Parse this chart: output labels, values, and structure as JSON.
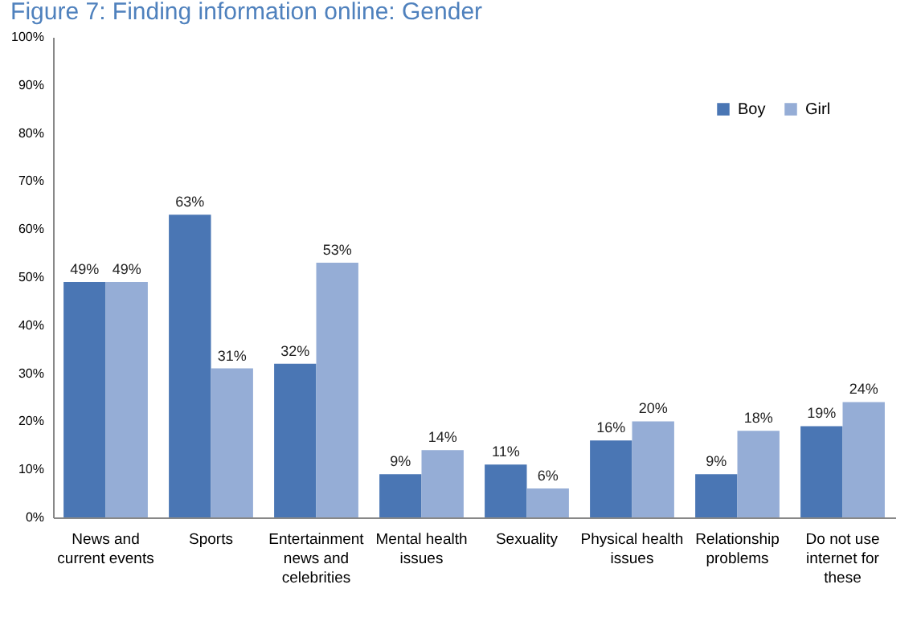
{
  "chart_data": {
    "type": "bar",
    "title": "Figure 7: Finding information online: Gender",
    "categories": [
      "News and current events",
      "Sports",
      "Entertainment news and celebrities",
      "Mental health issues",
      "Sexuality",
      "Physical health issues",
      "Relationship problems",
      "Do not use internet for these"
    ],
    "series": [
      {
        "name": "Boy",
        "color": "#4a76b4",
        "values": [
          49,
          63,
          32,
          9,
          11,
          16,
          9,
          19
        ],
        "value_labels": [
          "49%",
          "63%",
          "32%",
          "9%",
          "11%",
          "16%",
          "9%",
          "19%"
        ]
      },
      {
        "name": "Girl",
        "color": "#95add6",
        "values": [
          49,
          31,
          53,
          14,
          6,
          20,
          18,
          24
        ],
        "value_labels": [
          "49%",
          "31%",
          "53%",
          "14%",
          "6%",
          "20%",
          "18%",
          "24%"
        ]
      }
    ],
    "ylim": [
      0,
      100
    ],
    "yticks": [
      {
        "value": 0,
        "label": "0%"
      },
      {
        "value": 10,
        "label": "10%"
      },
      {
        "value": 20,
        "label": "20%"
      },
      {
        "value": 30,
        "label": "30%"
      },
      {
        "value": 40,
        "label": "40%"
      },
      {
        "value": 50,
        "label": "50%"
      },
      {
        "value": 60,
        "label": "60%"
      },
      {
        "value": 70,
        "label": "70%"
      },
      {
        "value": 80,
        "label": "80%"
      },
      {
        "value": 90,
        "label": "90%"
      },
      {
        "value": 100,
        "label": "100%"
      }
    ],
    "grid": false,
    "legend": "top right"
  }
}
